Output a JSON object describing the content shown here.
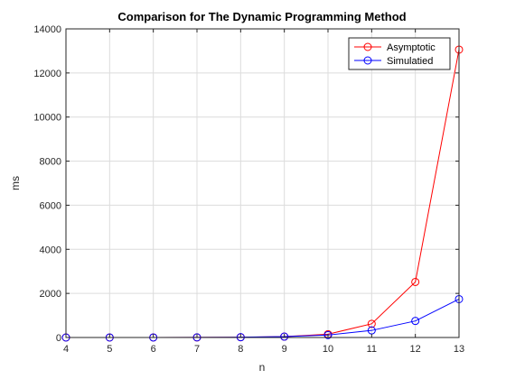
{
  "chart_data": {
    "type": "line",
    "title": "Comparison for The Dynamic Programming Method",
    "xlabel": "n",
    "ylabel": "ms",
    "x": [
      4,
      5,
      6,
      7,
      8,
      9,
      10,
      11,
      12,
      13
    ],
    "xlim": [
      4,
      13
    ],
    "ylim": [
      0,
      14000
    ],
    "xticks": [
      "4",
      "5",
      "6",
      "7",
      "8",
      "9",
      "10",
      "11",
      "12",
      "13"
    ],
    "yticks": [
      "0",
      "2000",
      "4000",
      "6000",
      "8000",
      "10000",
      "12000",
      "14000"
    ],
    "grid": true,
    "legend_position": "top-right",
    "series": [
      {
        "name": "Asymptotic",
        "color": "#ff0000",
        "marker": "circle",
        "values": [
          0,
          0,
          1,
          3,
          12,
          40,
          150,
          620,
          2520,
          13060
        ]
      },
      {
        "name": "Simulatied",
        "color": "#0000ff",
        "marker": "circle",
        "values": [
          0,
          1,
          2,
          5,
          15,
          40,
          110,
          320,
          750,
          1740
        ]
      }
    ]
  }
}
